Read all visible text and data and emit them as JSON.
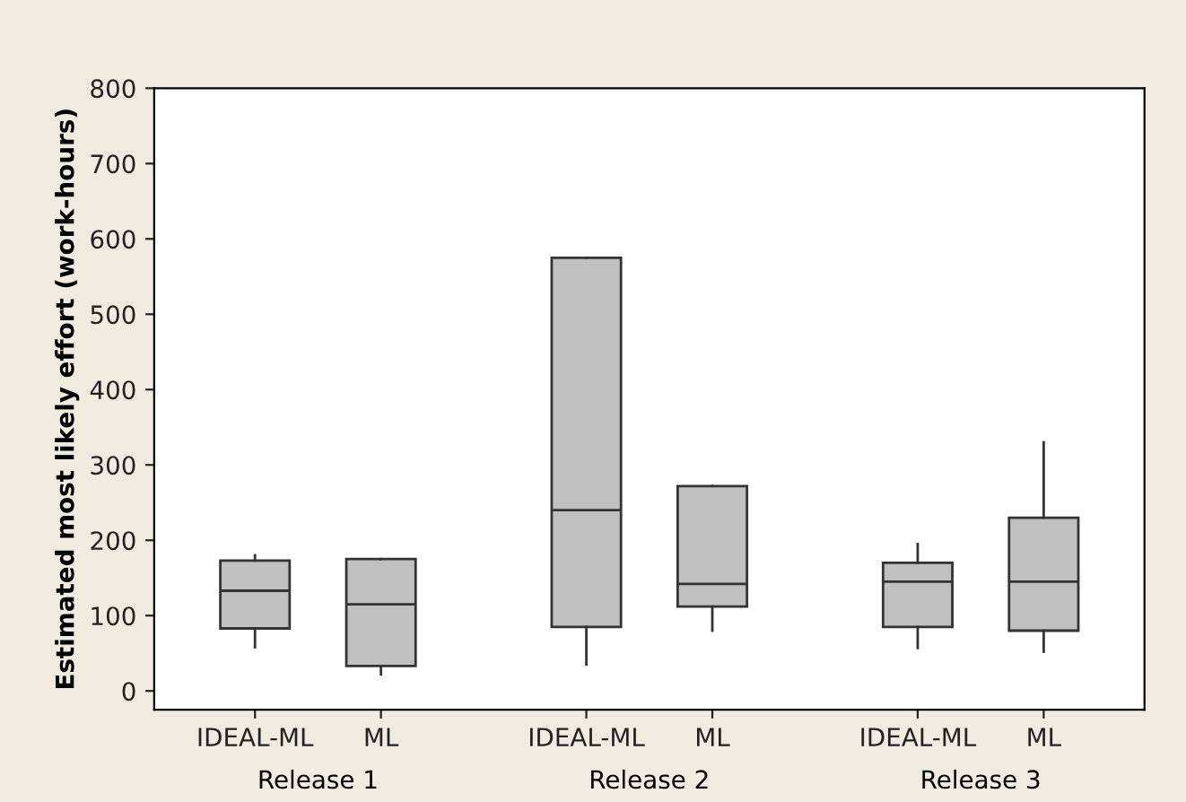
{
  "chart_data": {
    "type": "box",
    "ylabel": "Estimated most likely effort (work-hours)",
    "categories": [
      "IDEAL-ML",
      "ML",
      "IDEAL-ML",
      "ML",
      "IDEAL-ML",
      "ML"
    ],
    "annotations": [
      "Release 1",
      "Release 2",
      "Release 3"
    ],
    "color": "#c0c0c0",
    "boxes": [
      {
        "low": 58,
        "q1": 83,
        "median": 133,
        "q3": 173,
        "high": 180
      },
      {
        "low": 22,
        "q1": 33,
        "median": 115,
        "q3": 175,
        "high": 175
      },
      {
        "low": 35,
        "q1": 85,
        "median": 240,
        "q3": 575,
        "high": 575
      },
      {
        "low": 80,
        "q1": 112,
        "median": 142,
        "q3": 272,
        "high": 272
      },
      {
        "low": 57,
        "q1": 85,
        "median": 145,
        "q3": 170,
        "high": 195
      },
      {
        "low": 52,
        "q1": 80,
        "median": 145,
        "q3": 230,
        "high": 330
      }
    ],
    "ylim": [
      -25,
      800
    ],
    "yticks": [
      0,
      100,
      200,
      300,
      400,
      500,
      600,
      700,
      800
    ],
    "grid": false
  }
}
